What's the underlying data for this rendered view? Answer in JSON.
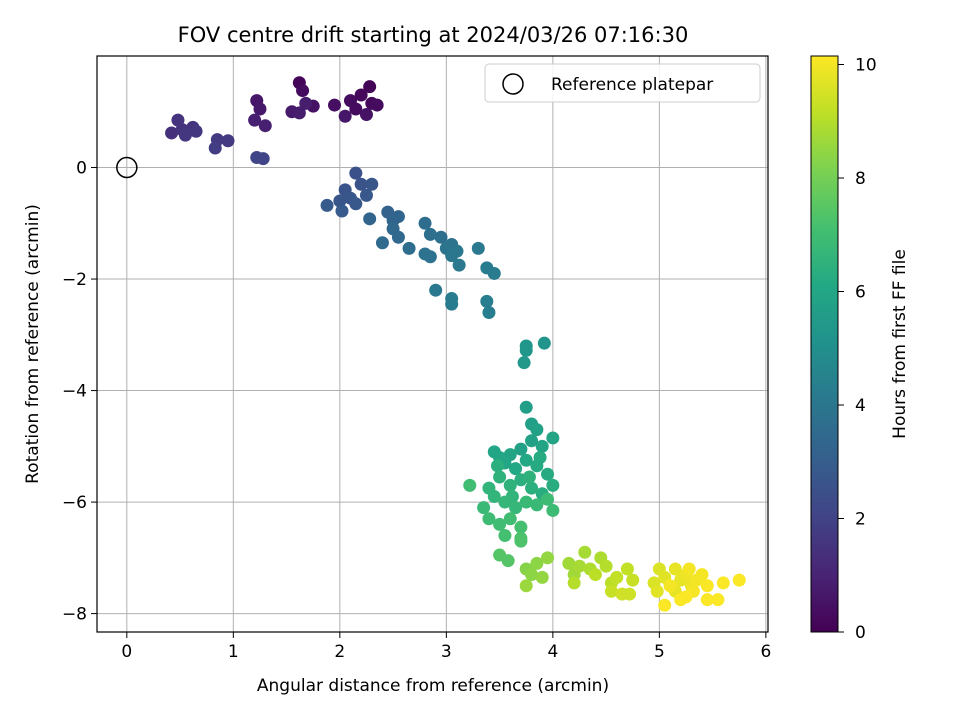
{
  "chart_data": {
    "type": "scatter",
    "title": "FOV centre drift starting at 2024/03/26 07:16:30",
    "xlabel": "Angular distance from reference (arcmin)",
    "ylabel": "Rotation from reference (arcmin)",
    "xlim": [
      -0.28,
      6.02
    ],
    "ylim": [
      -8.33,
      2.0
    ],
    "xticks": [
      0,
      1,
      2,
      3,
      4,
      5,
      6
    ],
    "yticks": [
      0,
      -2,
      -4,
      -6,
      -8
    ],
    "xtick_labels": [
      "0",
      "1",
      "2",
      "3",
      "4",
      "5",
      "6"
    ],
    "ytick_labels": [
      "0",
      "−2",
      "−4",
      "−6",
      "−8"
    ],
    "grid": true,
    "legend": {
      "placement": "top-right",
      "entries": [
        "Reference platepar"
      ]
    },
    "colorbar": {
      "label": "Hours from first FF file",
      "range": [
        0,
        10.15
      ],
      "ticks": [
        0,
        2,
        4,
        6,
        8,
        10
      ],
      "tick_labels": [
        "0",
        "2",
        "4",
        "6",
        "8",
        "10"
      ],
      "colormap": "viridis"
    },
    "reference_point": {
      "x": 0,
      "y": 0,
      "label": "Reference platepar"
    },
    "points": [
      {
        "x": 1.62,
        "y": 1.52,
        "c": 0.1
      },
      {
        "x": 2.28,
        "y": 1.45,
        "c": 0.1
      },
      {
        "x": 2.2,
        "y": 1.3,
        "c": 0.2
      },
      {
        "x": 2.3,
        "y": 1.15,
        "c": 0.2
      },
      {
        "x": 2.1,
        "y": 1.2,
        "c": 0.3
      },
      {
        "x": 1.95,
        "y": 1.12,
        "c": 0.4
      },
      {
        "x": 2.25,
        "y": 0.95,
        "c": 0.5
      },
      {
        "x": 2.15,
        "y": 1.05,
        "c": 0.3
      },
      {
        "x": 2.05,
        "y": 0.92,
        "c": 0.6
      },
      {
        "x": 1.75,
        "y": 1.1,
        "c": 0.5
      },
      {
        "x": 1.65,
        "y": 1.38,
        "c": 0.3
      },
      {
        "x": 2.35,
        "y": 1.12,
        "c": 0.3
      },
      {
        "x": 1.22,
        "y": 1.2,
        "c": 0.6
      },
      {
        "x": 1.25,
        "y": 1.05,
        "c": 0.7
      },
      {
        "x": 1.55,
        "y": 1.0,
        "c": 0.7
      },
      {
        "x": 1.62,
        "y": 0.98,
        "c": 0.8
      },
      {
        "x": 1.2,
        "y": 0.85,
        "c": 0.9
      },
      {
        "x": 1.3,
        "y": 0.75,
        "c": 0.9
      },
      {
        "x": 1.68,
        "y": 1.15,
        "c": 0.8
      },
      {
        "x": 0.42,
        "y": 0.62,
        "c": 1.4
      },
      {
        "x": 0.48,
        "y": 0.85,
        "c": 1.5
      },
      {
        "x": 0.52,
        "y": 0.68,
        "c": 1.5
      },
      {
        "x": 0.55,
        "y": 0.58,
        "c": 1.6
      },
      {
        "x": 0.62,
        "y": 0.72,
        "c": 1.5
      },
      {
        "x": 0.65,
        "y": 0.65,
        "c": 1.6
      },
      {
        "x": 0.85,
        "y": 0.5,
        "c": 1.7
      },
      {
        "x": 0.95,
        "y": 0.48,
        "c": 1.7
      },
      {
        "x": 0.83,
        "y": 0.35,
        "c": 1.8
      },
      {
        "x": 1.22,
        "y": 0.18,
        "c": 2.1
      },
      {
        "x": 1.28,
        "y": 0.16,
        "c": 2.1
      },
      {
        "x": 2.15,
        "y": -0.1,
        "c": 2.5
      },
      {
        "x": 2.2,
        "y": -0.3,
        "c": 2.6
      },
      {
        "x": 2.05,
        "y": -0.4,
        "c": 2.6
      },
      {
        "x": 2.1,
        "y": -0.55,
        "c": 2.7
      },
      {
        "x": 2.0,
        "y": -0.6,
        "c": 2.7
      },
      {
        "x": 2.25,
        "y": -0.5,
        "c": 2.8
      },
      {
        "x": 2.15,
        "y": -0.65,
        "c": 2.8
      },
      {
        "x": 1.88,
        "y": -0.68,
        "c": 2.9
      },
      {
        "x": 2.02,
        "y": -0.78,
        "c": 2.9
      },
      {
        "x": 2.3,
        "y": -0.3,
        "c": 2.7
      },
      {
        "x": 2.45,
        "y": -0.8,
        "c": 3.2
      },
      {
        "x": 2.5,
        "y": -0.95,
        "c": 3.3
      },
      {
        "x": 2.55,
        "y": -0.88,
        "c": 3.3
      },
      {
        "x": 2.28,
        "y": -0.92,
        "c": 3.3
      },
      {
        "x": 2.5,
        "y": -1.1,
        "c": 3.4
      },
      {
        "x": 2.55,
        "y": -1.25,
        "c": 3.4
      },
      {
        "x": 2.4,
        "y": -1.35,
        "c": 3.5
      },
      {
        "x": 2.65,
        "y": -1.45,
        "c": 3.6
      },
      {
        "x": 2.8,
        "y": -1.0,
        "c": 3.6
      },
      {
        "x": 2.85,
        "y": -1.2,
        "c": 3.7
      },
      {
        "x": 2.95,
        "y": -1.25,
        "c": 3.7
      },
      {
        "x": 2.8,
        "y": -1.55,
        "c": 3.8
      },
      {
        "x": 2.85,
        "y": -1.6,
        "c": 3.8
      },
      {
        "x": 3.0,
        "y": -1.45,
        "c": 3.9
      },
      {
        "x": 3.05,
        "y": -1.38,
        "c": 3.9
      },
      {
        "x": 3.1,
        "y": -1.5,
        "c": 4.0
      },
      {
        "x": 3.05,
        "y": -1.58,
        "c": 4.0
      },
      {
        "x": 3.12,
        "y": -1.75,
        "c": 4.1
      },
      {
        "x": 3.3,
        "y": -1.45,
        "c": 4.1
      },
      {
        "x": 3.38,
        "y": -1.8,
        "c": 4.2
      },
      {
        "x": 3.45,
        "y": -1.9,
        "c": 4.2
      },
      {
        "x": 2.9,
        "y": -2.2,
        "c": 4.1
      },
      {
        "x": 3.05,
        "y": -2.35,
        "c": 4.2
      },
      {
        "x": 3.05,
        "y": -2.45,
        "c": 4.2
      },
      {
        "x": 3.38,
        "y": -2.4,
        "c": 4.3
      },
      {
        "x": 3.4,
        "y": -2.6,
        "c": 4.3
      },
      {
        "x": 3.75,
        "y": -3.2,
        "c": 5.3
      },
      {
        "x": 3.75,
        "y": -3.28,
        "c": 5.3
      },
      {
        "x": 3.92,
        "y": -3.15,
        "c": 5.2
      },
      {
        "x": 3.73,
        "y": -3.5,
        "c": 5.4
      },
      {
        "x": 3.75,
        "y": -4.3,
        "c": 5.6
      },
      {
        "x": 3.8,
        "y": -4.6,
        "c": 5.7
      },
      {
        "x": 3.85,
        "y": -4.7,
        "c": 5.8
      },
      {
        "x": 3.8,
        "y": -4.9,
        "c": 5.8
      },
      {
        "x": 3.9,
        "y": -5.0,
        "c": 5.9
      },
      {
        "x": 4.0,
        "y": -4.85,
        "c": 5.9
      },
      {
        "x": 3.7,
        "y": -5.05,
        "c": 5.8
      },
      {
        "x": 3.6,
        "y": -5.15,
        "c": 5.9
      },
      {
        "x": 3.5,
        "y": -5.2,
        "c": 6.0
      },
      {
        "x": 3.45,
        "y": -5.1,
        "c": 6.0
      },
      {
        "x": 3.55,
        "y": -5.3,
        "c": 6.0
      },
      {
        "x": 3.65,
        "y": -5.4,
        "c": 6.1
      },
      {
        "x": 3.75,
        "y": -5.25,
        "c": 6.1
      },
      {
        "x": 3.85,
        "y": -5.35,
        "c": 6.2
      },
      {
        "x": 3.95,
        "y": -5.5,
        "c": 6.2
      },
      {
        "x": 4.0,
        "y": -5.7,
        "c": 6.3
      },
      {
        "x": 3.9,
        "y": -5.85,
        "c": 6.3
      },
      {
        "x": 3.8,
        "y": -5.75,
        "c": 6.4
      },
      {
        "x": 3.7,
        "y": -5.6,
        "c": 6.4
      },
      {
        "x": 3.6,
        "y": -5.7,
        "c": 6.5
      },
      {
        "x": 3.5,
        "y": -5.55,
        "c": 6.5
      },
      {
        "x": 3.45,
        "y": -5.9,
        "c": 6.6
      },
      {
        "x": 3.4,
        "y": -5.75,
        "c": 6.6
      },
      {
        "x": 3.55,
        "y": -6.0,
        "c": 6.7
      },
      {
        "x": 3.65,
        "y": -6.1,
        "c": 6.7
      },
      {
        "x": 3.75,
        "y": -6.0,
        "c": 6.8
      },
      {
        "x": 3.85,
        "y": -6.05,
        "c": 6.8
      },
      {
        "x": 3.95,
        "y": -5.95,
        "c": 6.9
      },
      {
        "x": 4.0,
        "y": -6.15,
        "c": 6.9
      },
      {
        "x": 3.35,
        "y": -6.1,
        "c": 6.8
      },
      {
        "x": 3.4,
        "y": -6.3,
        "c": 6.9
      },
      {
        "x": 3.5,
        "y": -6.4,
        "c": 7.0
      },
      {
        "x": 3.6,
        "y": -6.3,
        "c": 7.0
      },
      {
        "x": 3.7,
        "y": -6.45,
        "c": 7.1
      },
      {
        "x": 3.55,
        "y": -6.6,
        "c": 7.1
      },
      {
        "x": 3.7,
        "y": -6.65,
        "c": 7.2
      },
      {
        "x": 3.22,
        "y": -5.7,
        "c": 7.0
      },
      {
        "x": 3.5,
        "y": -6.95,
        "c": 7.4
      },
      {
        "x": 3.58,
        "y": -7.05,
        "c": 7.4
      },
      {
        "x": 3.7,
        "y": -6.7,
        "c": 7.3
      },
      {
        "x": 3.48,
        "y": -5.35,
        "c": 6.4
      },
      {
        "x": 3.62,
        "y": -5.9,
        "c": 6.6
      },
      {
        "x": 3.78,
        "y": -5.55,
        "c": 6.5
      },
      {
        "x": 3.88,
        "y": -5.2,
        "c": 6.2
      },
      {
        "x": 3.75,
        "y": -7.2,
        "c": 8.3
      },
      {
        "x": 3.8,
        "y": -7.3,
        "c": 8.4
      },
      {
        "x": 3.85,
        "y": -7.1,
        "c": 8.4
      },
      {
        "x": 3.9,
        "y": -7.35,
        "c": 8.5
      },
      {
        "x": 3.95,
        "y": -7.0,
        "c": 8.5
      },
      {
        "x": 3.75,
        "y": -7.5,
        "c": 8.6
      },
      {
        "x": 4.15,
        "y": -7.1,
        "c": 8.7
      },
      {
        "x": 4.2,
        "y": -7.3,
        "c": 8.7
      },
      {
        "x": 4.25,
        "y": -7.15,
        "c": 8.8
      },
      {
        "x": 4.3,
        "y": -6.9,
        "c": 8.8
      },
      {
        "x": 4.35,
        "y": -7.2,
        "c": 8.9
      },
      {
        "x": 4.45,
        "y": -7.0,
        "c": 8.9
      },
      {
        "x": 4.5,
        "y": -7.15,
        "c": 9.0
      },
      {
        "x": 4.2,
        "y": -7.45,
        "c": 9.0
      },
      {
        "x": 4.4,
        "y": -7.3,
        "c": 9.1
      },
      {
        "x": 4.55,
        "y": -7.45,
        "c": 9.1
      },
      {
        "x": 4.6,
        "y": -7.35,
        "c": 9.2
      },
      {
        "x": 4.7,
        "y": -7.2,
        "c": 9.2
      },
      {
        "x": 4.75,
        "y": -7.4,
        "c": 9.3
      },
      {
        "x": 4.55,
        "y": -7.6,
        "c": 9.3
      },
      {
        "x": 4.65,
        "y": -7.65,
        "c": 9.4
      },
      {
        "x": 4.72,
        "y": -7.65,
        "c": 9.4
      },
      {
        "x": 5.0,
        "y": -7.2,
        "c": 9.6
      },
      {
        "x": 4.95,
        "y": -7.45,
        "c": 9.6
      },
      {
        "x": 5.05,
        "y": -7.35,
        "c": 9.7
      },
      {
        "x": 4.98,
        "y": -7.6,
        "c": 9.7
      },
      {
        "x": 5.15,
        "y": -7.6,
        "c": 9.8
      },
      {
        "x": 5.2,
        "y": -7.4,
        "c": 9.8
      },
      {
        "x": 5.15,
        "y": -7.2,
        "c": 9.8
      },
      {
        "x": 5.25,
        "y": -7.3,
        "c": 9.9
      },
      {
        "x": 5.3,
        "y": -7.5,
        "c": 9.9
      },
      {
        "x": 5.35,
        "y": -7.4,
        "c": 10.0
      },
      {
        "x": 5.28,
        "y": -7.2,
        "c": 10.0
      },
      {
        "x": 5.4,
        "y": -7.3,
        "c": 10.0
      },
      {
        "x": 5.45,
        "y": -7.75,
        "c": 10.1
      },
      {
        "x": 5.25,
        "y": -7.7,
        "c": 10.1
      },
      {
        "x": 5.2,
        "y": -7.75,
        "c": 10.1
      },
      {
        "x": 5.05,
        "y": -7.85,
        "c": 10.1
      },
      {
        "x": 5.55,
        "y": -7.75,
        "c": 10.1
      },
      {
        "x": 5.45,
        "y": -7.5,
        "c": 10.1
      },
      {
        "x": 5.6,
        "y": -7.45,
        "c": 10.1
      },
      {
        "x": 5.75,
        "y": -7.4,
        "c": 10.1
      },
      {
        "x": 5.1,
        "y": -7.5,
        "c": 10.0
      },
      {
        "x": 5.32,
        "y": -7.6,
        "c": 10.0
      }
    ]
  }
}
